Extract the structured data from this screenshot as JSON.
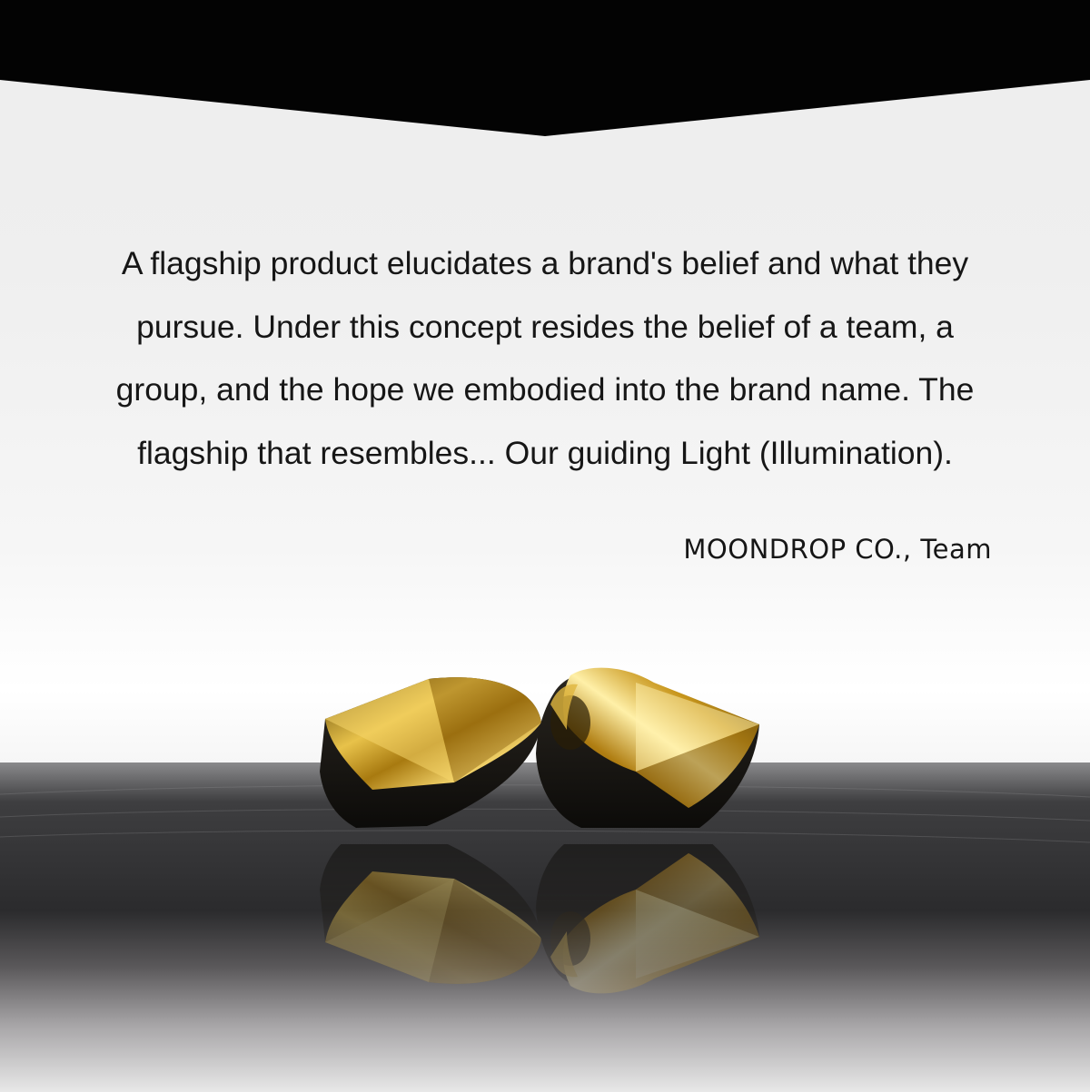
{
  "quote": {
    "text": "A flagship product elucidates a brand's belief and what they\npursue. Under this concept resides the belief of a team, a\ngroup, and the hope we embodied into the brand name. The\nflagship that resembles...  Our guiding Light (Illumination)."
  },
  "signature": "MOONDROP CO., Team",
  "colors": {
    "band": "#030303",
    "background": "#efefef",
    "text": "#161616",
    "gold": "#c89b1a",
    "surface": "#3a3a3c"
  }
}
